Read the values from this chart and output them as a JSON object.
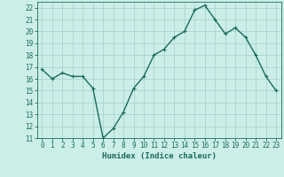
{
  "x": [
    0,
    1,
    2,
    3,
    4,
    5,
    6,
    7,
    8,
    9,
    10,
    11,
    12,
    13,
    14,
    15,
    16,
    17,
    18,
    19,
    20,
    21,
    22,
    23
  ],
  "y": [
    16.8,
    16.0,
    16.5,
    16.2,
    16.2,
    15.2,
    11.0,
    11.8,
    13.2,
    15.2,
    16.2,
    18.0,
    18.5,
    19.5,
    20.0,
    21.8,
    22.2,
    21.0,
    19.8,
    20.3,
    19.5,
    18.0,
    16.2,
    15.0
  ],
  "line_color": "#1a6b5a",
  "marker": "+",
  "marker_size": 3,
  "bg_color": "#cceee8",
  "grid_color": "#aad4ce",
  "xlabel": "Humidex (Indice chaleur)",
  "ylabel": "",
  "xlim": [
    -0.5,
    23.5
  ],
  "ylim": [
    11,
    22.5
  ],
  "yticks": [
    11,
    12,
    13,
    14,
    15,
    16,
    17,
    18,
    19,
    20,
    21,
    22
  ],
  "xticks": [
    0,
    1,
    2,
    3,
    4,
    5,
    6,
    7,
    8,
    9,
    10,
    11,
    12,
    13,
    14,
    15,
    16,
    17,
    18,
    19,
    20,
    21,
    22,
    23
  ],
  "tick_color": "#1a6b5a",
  "label_color": "#1a6b5a",
  "axis_color": "#1a6b5a",
  "xlabel_fontsize": 6.5,
  "tick_fontsize": 5.5,
  "linewidth": 1.0
}
